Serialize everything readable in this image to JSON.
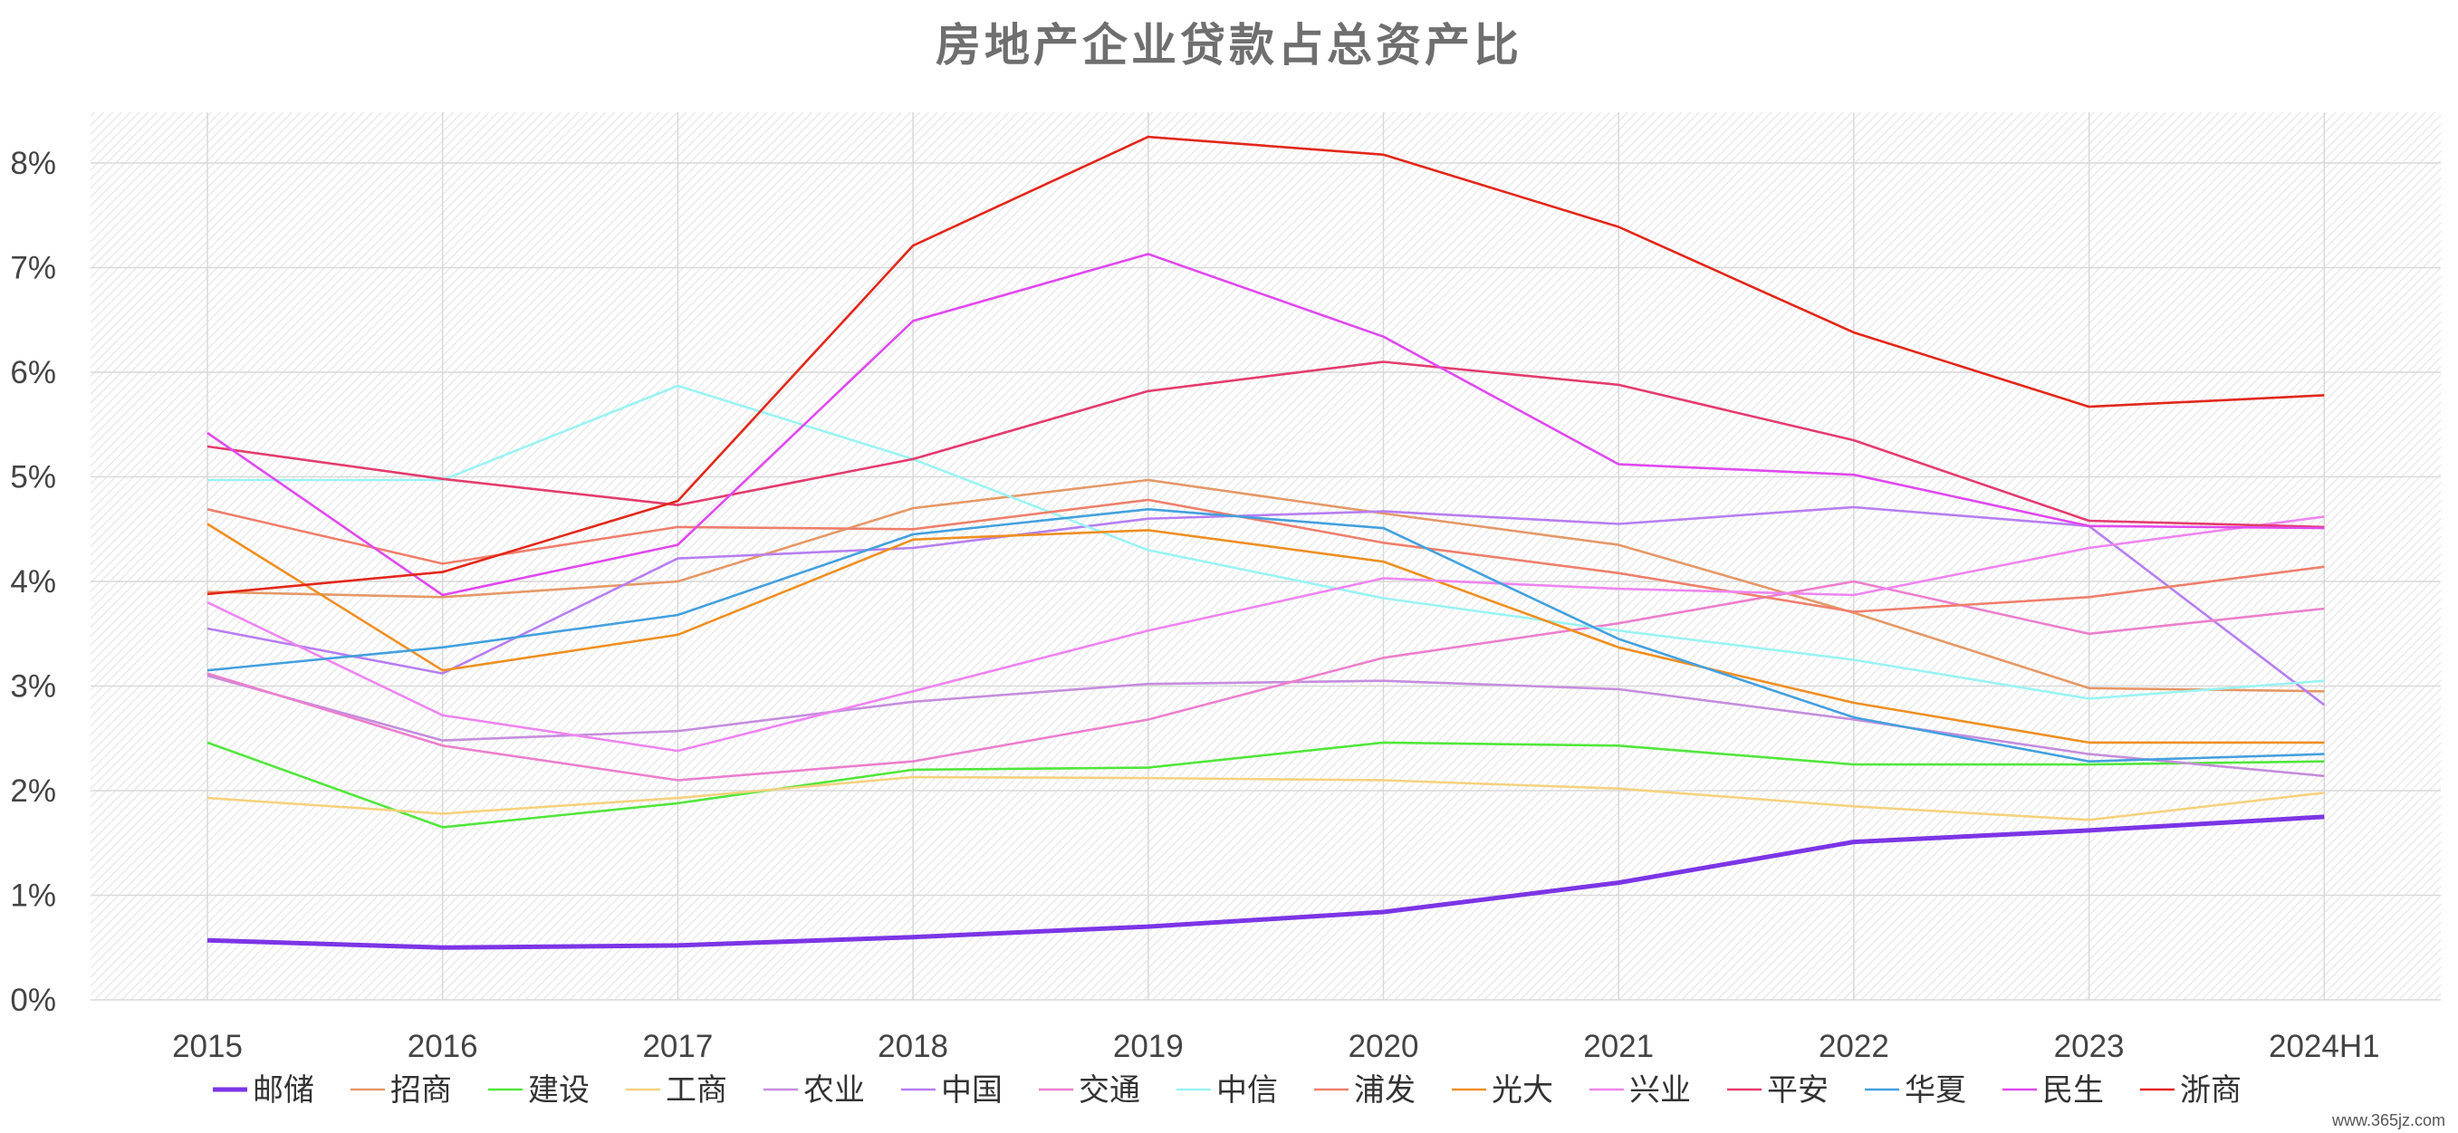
{
  "chart_data": {
    "type": "line",
    "title": "房地产企业贷款占总资产比",
    "categories": [
      "2015",
      "2016",
      "2017",
      "2018",
      "2019",
      "2020",
      "2021",
      "2022",
      "2023",
      "2024H1"
    ],
    "y_ticks": [
      "0%",
      "1%",
      "2%",
      "3%",
      "4%",
      "5%",
      "6%",
      "7%",
      "8%"
    ],
    "ylim": [
      0,
      8.5
    ],
    "y_unit": "%",
    "grid": true,
    "legend_position": "bottom",
    "series": [
      {
        "name": "邮储",
        "color": "#7b35e6",
        "bold": true,
        "values": [
          0.57,
          0.5,
          0.52,
          0.6,
          0.7,
          0.84,
          1.12,
          1.51,
          1.62,
          1.75
        ]
      },
      {
        "name": "招商",
        "color": "#e59868",
        "bold": false,
        "values": [
          3.9,
          3.85,
          4.0,
          4.7,
          4.97,
          4.65,
          4.35,
          3.7,
          2.98,
          2.95
        ]
      },
      {
        "name": "建设",
        "color": "#52e63c",
        "bold": false,
        "values": [
          2.46,
          1.65,
          1.88,
          2.2,
          2.22,
          2.46,
          2.43,
          2.25,
          2.25,
          2.28
        ]
      },
      {
        "name": "工商",
        "color": "#f5d27f",
        "bold": false,
        "values": [
          1.93,
          1.78,
          1.93,
          2.13,
          2.12,
          2.1,
          2.02,
          1.85,
          1.72,
          1.98
        ]
      },
      {
        "name": "农业",
        "color": "#c58ddd",
        "bold": false,
        "values": [
          3.1,
          2.48,
          2.57,
          2.85,
          3.02,
          3.05,
          2.97,
          2.68,
          2.35,
          2.14
        ]
      },
      {
        "name": "中国",
        "color": "#b77ef1",
        "bold": false,
        "values": [
          3.55,
          3.12,
          4.22,
          4.32,
          4.6,
          4.67,
          4.55,
          4.71,
          4.53,
          2.82
        ]
      },
      {
        "name": "交通",
        "color": "#ec7fcd",
        "bold": false,
        "values": [
          3.12,
          2.43,
          2.1,
          2.28,
          2.68,
          3.27,
          3.6,
          4.0,
          3.5,
          3.74
        ]
      },
      {
        "name": "中信",
        "color": "#9bf3f3",
        "bold": false,
        "values": [
          4.97,
          4.97,
          5.87,
          5.17,
          4.3,
          3.84,
          3.53,
          3.25,
          2.88,
          3.05
        ]
      },
      {
        "name": "浦发",
        "color": "#ee7f6d",
        "bold": false,
        "values": [
          4.69,
          4.17,
          4.52,
          4.5,
          4.78,
          4.37,
          4.08,
          3.71,
          3.85,
          4.14
        ]
      },
      {
        "name": "光大",
        "color": "#ee8f23",
        "bold": false,
        "values": [
          4.55,
          3.15,
          3.49,
          4.4,
          4.49,
          4.19,
          3.37,
          2.84,
          2.46,
          2.46
        ]
      },
      {
        "name": "兴业",
        "color": "#ee85ef",
        "bold": false,
        "values": [
          3.8,
          2.72,
          2.38,
          2.95,
          3.53,
          4.03,
          3.93,
          3.87,
          4.32,
          4.62
        ]
      },
      {
        "name": "平安",
        "color": "#e33c6e",
        "bold": false,
        "values": [
          5.29,
          4.98,
          4.73,
          5.17,
          5.82,
          6.1,
          5.88,
          5.35,
          4.58,
          4.52
        ]
      },
      {
        "name": "华夏",
        "color": "#44a0de",
        "bold": false,
        "values": [
          3.15,
          3.37,
          3.68,
          4.45,
          4.69,
          4.51,
          3.45,
          2.7,
          2.28,
          2.35
        ]
      },
      {
        "name": "民生",
        "color": "#e049ee",
        "bold": false,
        "values": [
          5.42,
          3.87,
          4.35,
          6.49,
          7.13,
          6.34,
          5.12,
          5.02,
          4.53,
          4.51
        ]
      },
      {
        "name": "浙商",
        "color": "#e2271a",
        "bold": false,
        "values": [
          3.88,
          4.09,
          4.77,
          7.21,
          8.25,
          8.08,
          7.39,
          6.38,
          5.67,
          5.78
        ]
      }
    ]
  },
  "watermark": "www.365jz.com"
}
